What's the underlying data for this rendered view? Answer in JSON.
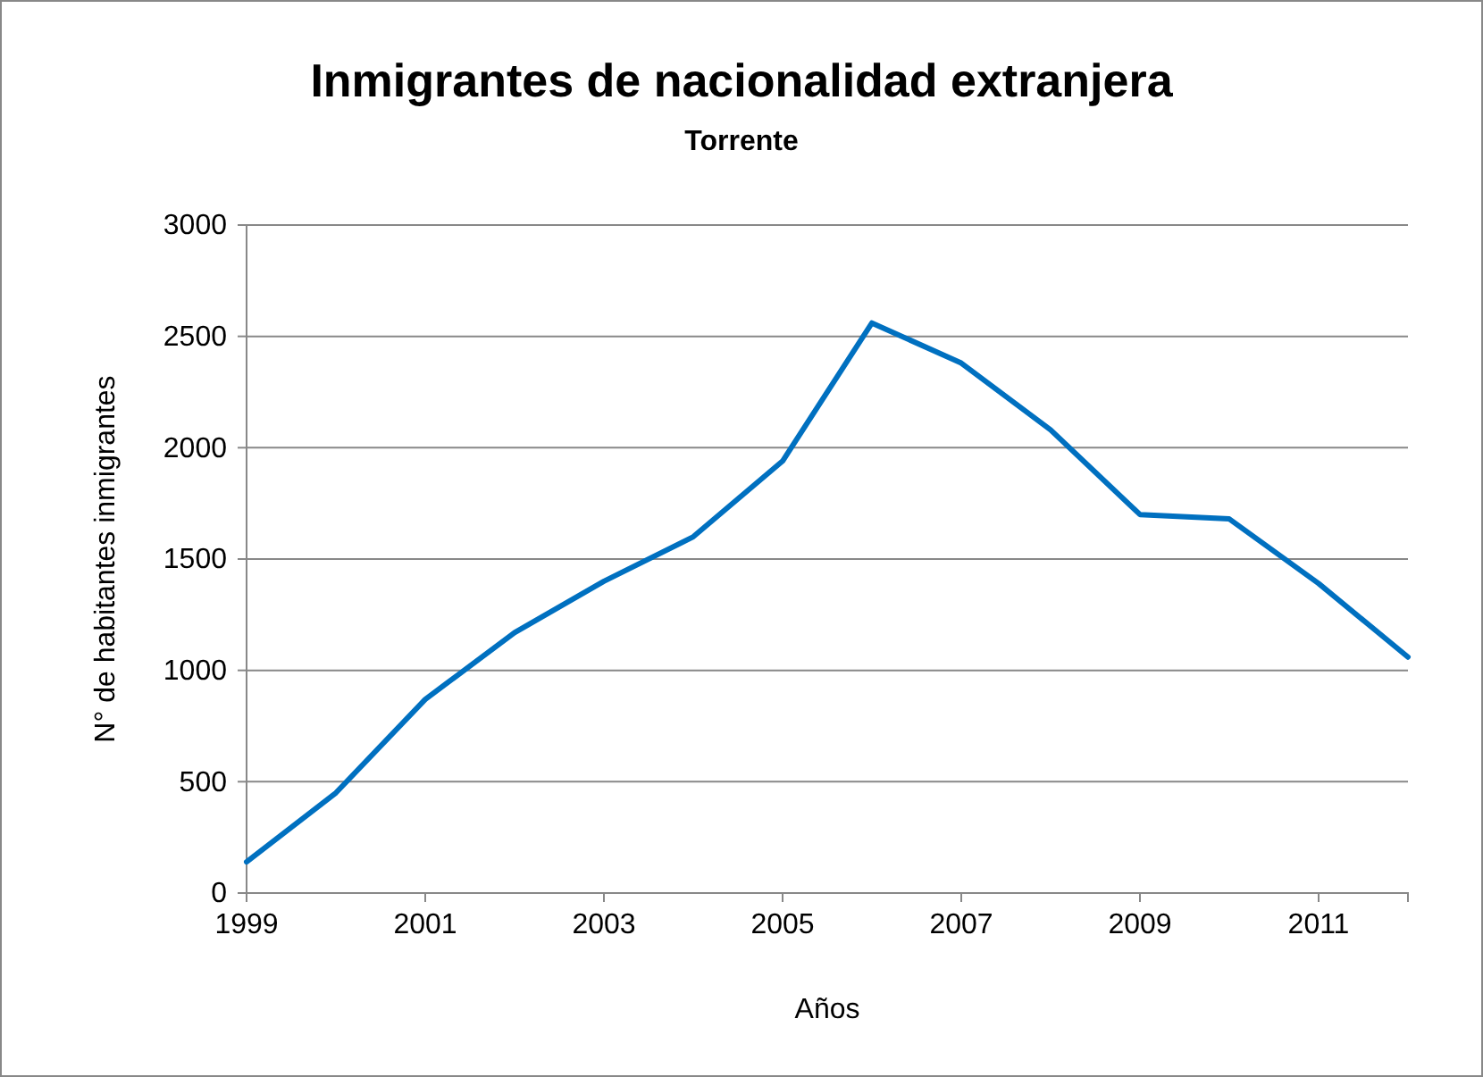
{
  "chart_data": {
    "type": "line",
    "title": "Inmigrantes de nacionalidad extranjera",
    "subtitle": "Torrente",
    "xlabel": "Años",
    "ylabel": "N° de habitantes inmigrantes",
    "x": [
      1999,
      2000,
      2001,
      2002,
      2003,
      2004,
      2005,
      2006,
      2007,
      2008,
      2009,
      2010,
      2011,
      2012
    ],
    "series": [
      {
        "color": "#0070c0",
        "values": [
          140,
          450,
          870,
          1170,
          1400,
          1600,
          1940,
          2560,
          2380,
          2080,
          1700,
          1680,
          1390,
          1060
        ]
      }
    ],
    "xlim": [
      1999,
      2012
    ],
    "xticks": [
      1999,
      2001,
      2003,
      2005,
      2007,
      2009,
      2011
    ],
    "ylim": [
      0,
      3000
    ],
    "yticks": [
      0,
      500,
      1000,
      1500,
      2000,
      2500,
      3000
    ],
    "grid": "y",
    "marker": "none",
    "line_style": "solid"
  }
}
